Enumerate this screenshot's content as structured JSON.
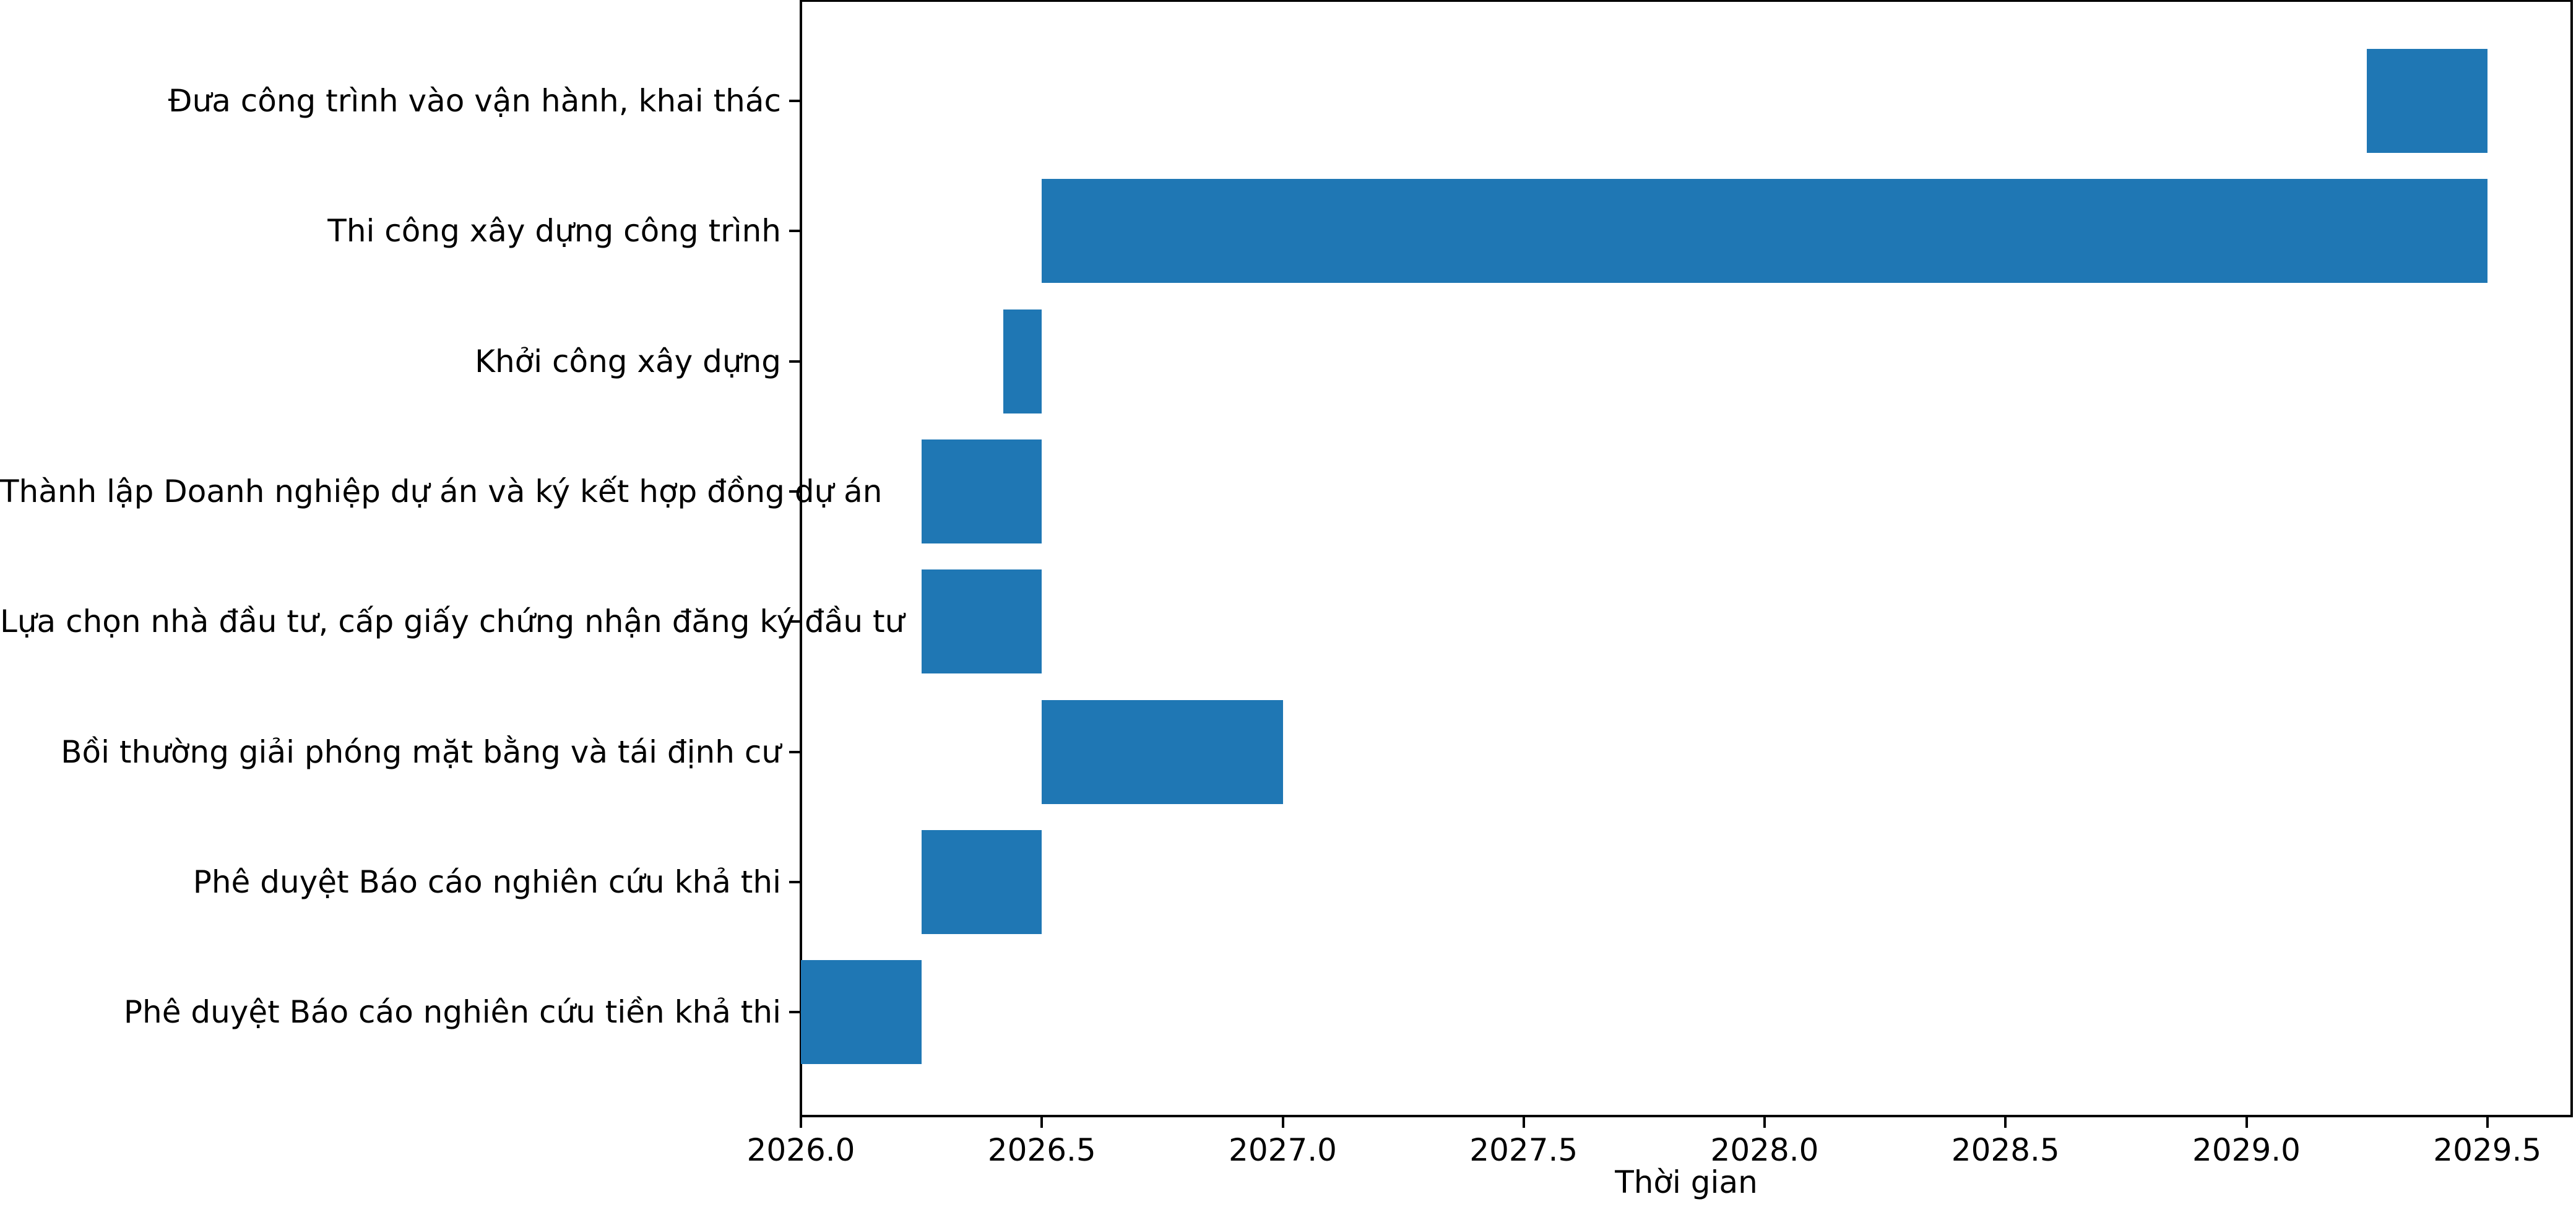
{
  "chart_data": {
    "type": "bar",
    "orientation": "horizontal",
    "title": "",
    "xlabel": "Thời gian",
    "ylabel": "",
    "xlim": [
      2026.0,
      2029.675
    ],
    "ylim": [
      -0.8,
      7.78
    ],
    "grid": false,
    "legend": false,
    "bar_color": "#1f77b4",
    "axis_color": "#000000",
    "x_ticks": [
      2026.0,
      2026.5,
      2027.0,
      2027.5,
      2028.0,
      2028.5,
      2029.0,
      2029.5
    ],
    "x_tick_labels": [
      "2026.0",
      "2026.5",
      "2027.0",
      "2027.5",
      "2028.0",
      "2028.5",
      "2029.0",
      "2029.5"
    ],
    "tasks": [
      {
        "label": "Đưa công trình vào vận hành, khai thác",
        "start": 2029.25,
        "end": 2029.5
      },
      {
        "label": "Thi công xây dựng công trình",
        "start": 2026.5,
        "end": 2029.5
      },
      {
        "label": "Khởi công xây dựng",
        "start": 2026.42,
        "end": 2026.5
      },
      {
        "label": "Thành lập Doanh nghiệp dự án và ký kết hợp đồng dự án",
        "start": 2026.25,
        "end": 2026.5
      },
      {
        "label": "Lựa chọn nhà đầu tư, cấp giấy chứng nhận đăng ký đầu tư",
        "start": 2026.25,
        "end": 2026.5
      },
      {
        "label": "Bồi thường giải phóng mặt bằng và tái định cư",
        "start": 2026.5,
        "end": 2027.0
      },
      {
        "label": "Phê duyệt Báo cáo nghiên cứu khả thi",
        "start": 2026.25,
        "end": 2026.5
      },
      {
        "label": "Phê duyệt Báo cáo nghiên cứu tiền khả thi",
        "start": 2026.0,
        "end": 2026.25
      }
    ]
  }
}
